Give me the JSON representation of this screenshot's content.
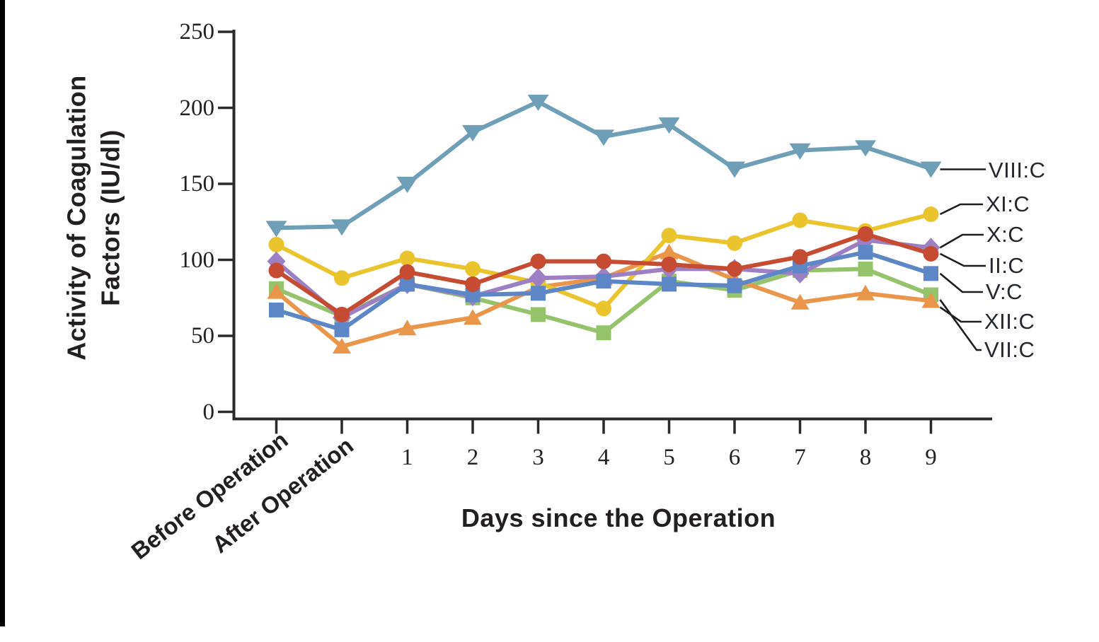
{
  "chart_data": {
    "type": "line",
    "title": "",
    "xlabel": "Days since the Operation",
    "ylabel": "Activity of Coagulation Factors (IU/dl)",
    "ylabel_lines": [
      "Activity of Coagulation",
      "Factors (IU/dl)"
    ],
    "ylim": [
      0,
      250
    ],
    "yticks": [
      0,
      50,
      100,
      150,
      200,
      250
    ],
    "grid": false,
    "legend_position": "right-edge-labels",
    "categories": [
      "Before Operation",
      "After Operation",
      "1",
      "2",
      "3",
      "4",
      "5",
      "6",
      "7",
      "8",
      "9"
    ],
    "series": [
      {
        "name": "VIII:C",
        "color": "#6e9fb6",
        "marker": "triangle-down",
        "values": [
          121,
          122,
          150,
          184,
          204,
          181,
          189,
          160,
          172,
          174,
          160
        ]
      },
      {
        "name": "XI:C",
        "color": "#eac42d",
        "marker": "circle",
        "values": [
          110,
          88,
          101,
          94,
          85,
          68,
          116,
          111,
          126,
          119,
          130
        ]
      },
      {
        "name": "X:C",
        "color": "#9d7fc3",
        "marker": "diamond",
        "values": [
          99,
          62,
          84,
          76,
          88,
          89,
          94,
          94,
          91,
          113,
          108
        ]
      },
      {
        "name": "II:C",
        "color": "#c54b33",
        "marker": "circle",
        "values": [
          93,
          64,
          92,
          84,
          99,
          99,
          97,
          94,
          102,
          117,
          104
        ]
      },
      {
        "name": "V:C",
        "color": "#5c86c5",
        "marker": "square",
        "values": [
          67,
          54,
          84,
          77,
          78,
          86,
          84,
          83,
          96,
          105,
          91
        ]
      },
      {
        "name": "XII:C",
        "color": "#e9964a",
        "marker": "triangle-up",
        "values": [
          79,
          43,
          55,
          62,
          82,
          88,
          105,
          87,
          72,
          78,
          73
        ]
      },
      {
        "name": "VII:C",
        "color": "#95c36c",
        "marker": "square",
        "values": [
          81,
          63,
          84,
          75,
          64,
          52,
          86,
          80,
          93,
          94,
          77
        ]
      }
    ],
    "axis_color": "#2a2a2a",
    "annotation_color": "#1d1d1d"
  }
}
